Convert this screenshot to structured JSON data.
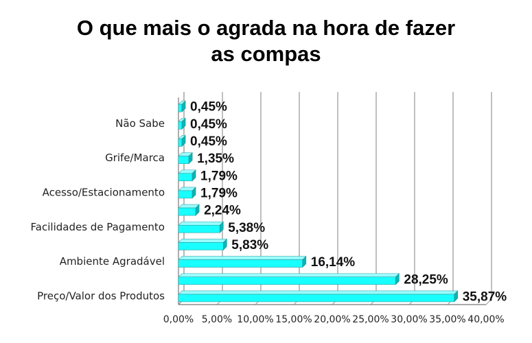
{
  "chart_data": {
    "type": "bar",
    "orientation": "horizontal-3d",
    "title_line1": "O que mais o agrada na hora de fazer",
    "title_line2": "as compas",
    "categories": [
      "Preço/Valor dos Produtos",
      "",
      "Ambiente Agradável",
      "",
      "Facilidades de Pagamento",
      "",
      "Acesso/Estacionamento",
      "",
      "Grife/Marca",
      "",
      "Não Sabe",
      ""
    ],
    "values": [
      35.87,
      28.25,
      16.14,
      5.83,
      5.38,
      2.24,
      1.79,
      1.79,
      1.35,
      0.45,
      0.45,
      0.45
    ],
    "data_labels": [
      "35,87%",
      "28,25%",
      "16,14%",
      "5,83%",
      "5,38%",
      "2,24%",
      "1,79%",
      "1,79%",
      "1,35%",
      "0,45%",
      "0,45%",
      "0,45%"
    ],
    "xlim": [
      0,
      40
    ],
    "x_ticks": [
      "0,00%",
      "5,00%",
      "10,00%",
      "15,00%",
      "20,00%",
      "25,00%",
      "30,00%",
      "35,00%",
      "40,00%"
    ],
    "grid": true,
    "bar_color": "#19ffff",
    "legend": "none"
  }
}
